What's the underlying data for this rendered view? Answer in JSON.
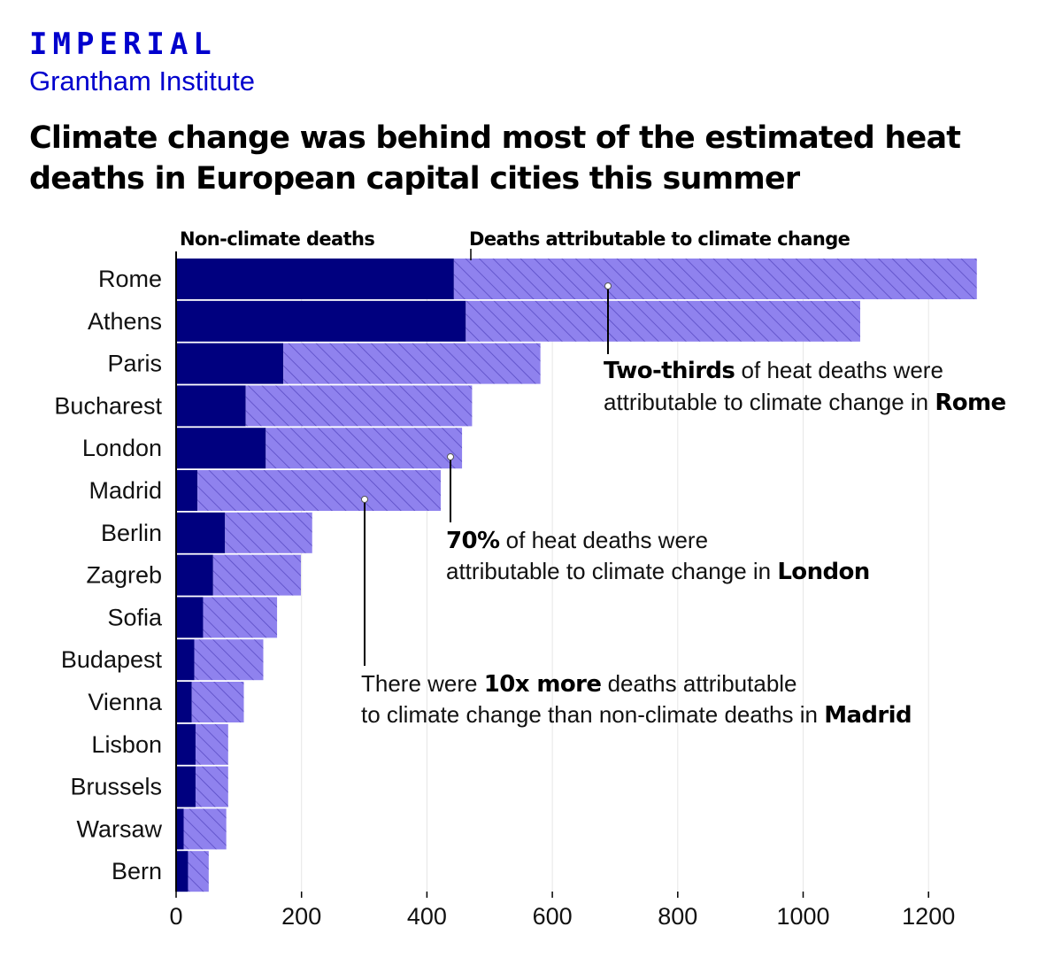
{
  "brand": {
    "name": "IMPERIAL",
    "institute": "Grantham Institute"
  },
  "title": "Climate change was behind most of the estimated heat deaths in European capital cities this summer",
  "colors": {
    "brand": "#0000cd",
    "non_climate": "#00007f",
    "climate": "#8f82ee",
    "hatch": "#5a4cc4"
  },
  "chart_data": {
    "type": "bar",
    "orientation": "horizontal",
    "stacked": true,
    "categories": [
      "Rome",
      "Athens",
      "Paris",
      "Bucharest",
      "London",
      "Madrid",
      "Berlin",
      "Zagreb",
      "Sofia",
      "Budapest",
      "Vienna",
      "Lisbon",
      "Brussels",
      "Warsaw",
      "Bern"
    ],
    "series": [
      {
        "name": "Non-climate deaths",
        "values": [
          443,
          462,
          171,
          111,
          143,
          34,
          78,
          59,
          43,
          29,
          25,
          31,
          31,
          12,
          19
        ]
      },
      {
        "name": "Deaths attributable to climate change",
        "values": [
          834,
          629,
          410,
          361,
          313,
          388,
          139,
          140,
          118,
          110,
          83,
          52,
          52,
          68,
          33
        ]
      }
    ],
    "xlim": [
      0,
      1300
    ],
    "xticks": [
      "0",
      "200",
      "400",
      "600",
      "800",
      "1000",
      "1200"
    ],
    "grid": true,
    "legend": "top",
    "annotations": [
      {
        "city": "Rome",
        "parts": [
          {
            "text": "Two-thirds",
            "bold": true
          },
          {
            "text": " of heat deaths were",
            "bold": false
          }
        ],
        "parts2": [
          {
            "text": "attributable to climate change in ",
            "bold": false
          },
          {
            "text": "Rome",
            "bold": true
          }
        ]
      },
      {
        "city": "London",
        "parts": [
          {
            "text": "70%",
            "bold": true
          },
          {
            "text": " of heat deaths were",
            "bold": false
          }
        ],
        "parts2": [
          {
            "text": "attributable to climate change in ",
            "bold": false
          },
          {
            "text": "London",
            "bold": true
          }
        ]
      },
      {
        "city": "Madrid",
        "parts": [
          {
            "text": "There were ",
            "bold": false
          },
          {
            "text": "10x more",
            "bold": true
          },
          {
            "text": " deaths attributable",
            "bold": false
          }
        ],
        "parts2": [
          {
            "text": "to climate change than non-climate deaths in ",
            "bold": false
          },
          {
            "text": "Madrid",
            "bold": true
          }
        ]
      }
    ]
  }
}
